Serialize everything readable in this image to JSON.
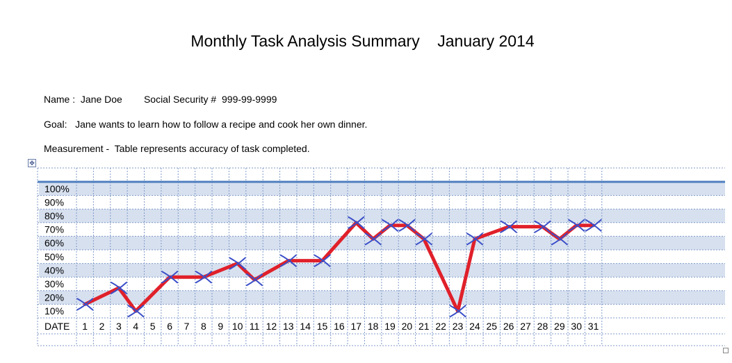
{
  "header": {
    "title": "Monthly Task Analysis Summary    January 2014"
  },
  "info": {
    "name_line": "Name :  Jane Doe        Social Security #  999-99-9999",
    "goal_line": "Goal:   Jane wants to learn how to follow a recipe and cook her own dinner.",
    "measurement_line": "Measurement -  Table represents accuracy of task completed."
  },
  "colors": {
    "band": "#d7e0ef",
    "grid_dash": "#7f9ac8",
    "top_rule": "#4f7fbf",
    "line": "#e0202a",
    "marker": "#3a4fc8"
  },
  "chart_data": {
    "type": "line",
    "title": "",
    "x_header": "DATE",
    "x": [
      1,
      2,
      3,
      4,
      5,
      6,
      7,
      8,
      9,
      10,
      11,
      12,
      13,
      14,
      15,
      16,
      17,
      18,
      19,
      20,
      21,
      22,
      23,
      24,
      25,
      26,
      27,
      28,
      29,
      30,
      31
    ],
    "y_labels": [
      "100%",
      "90%",
      "80%",
      "70%",
      "60%",
      "50%",
      "40%",
      "30%",
      "20%",
      "10%"
    ],
    "ylim": [
      0,
      100
    ],
    "series": [
      {
        "points": [
          {
            "x": 1,
            "y": 10
          },
          {
            "x": 3,
            "y": 22
          },
          {
            "x": 4,
            "y": 5
          },
          {
            "x": 6,
            "y": 30
          },
          {
            "x": 8,
            "y": 30
          },
          {
            "x": 10,
            "y": 40
          },
          {
            "x": 11,
            "y": 28
          },
          {
            "x": 13,
            "y": 42
          },
          {
            "x": 15,
            "y": 42
          },
          {
            "x": 17,
            "y": 70
          },
          {
            "x": 18,
            "y": 58
          },
          {
            "x": 19,
            "y": 68
          },
          {
            "x": 20,
            "y": 68
          },
          {
            "x": 21,
            "y": 58
          },
          {
            "x": 23,
            "y": 5
          },
          {
            "x": 24,
            "y": 58
          },
          {
            "x": 26,
            "y": 67
          },
          {
            "x": 28,
            "y": 67
          },
          {
            "x": 29,
            "y": 58
          },
          {
            "x": 30,
            "y": 68
          },
          {
            "x": 31,
            "y": 68
          }
        ]
      }
    ],
    "markers": [
      1,
      3,
      4,
      6,
      8,
      10,
      11,
      13,
      15,
      17,
      18,
      19,
      20,
      21,
      23,
      24,
      26,
      28,
      29,
      30,
      31
    ],
    "grid": true
  }
}
